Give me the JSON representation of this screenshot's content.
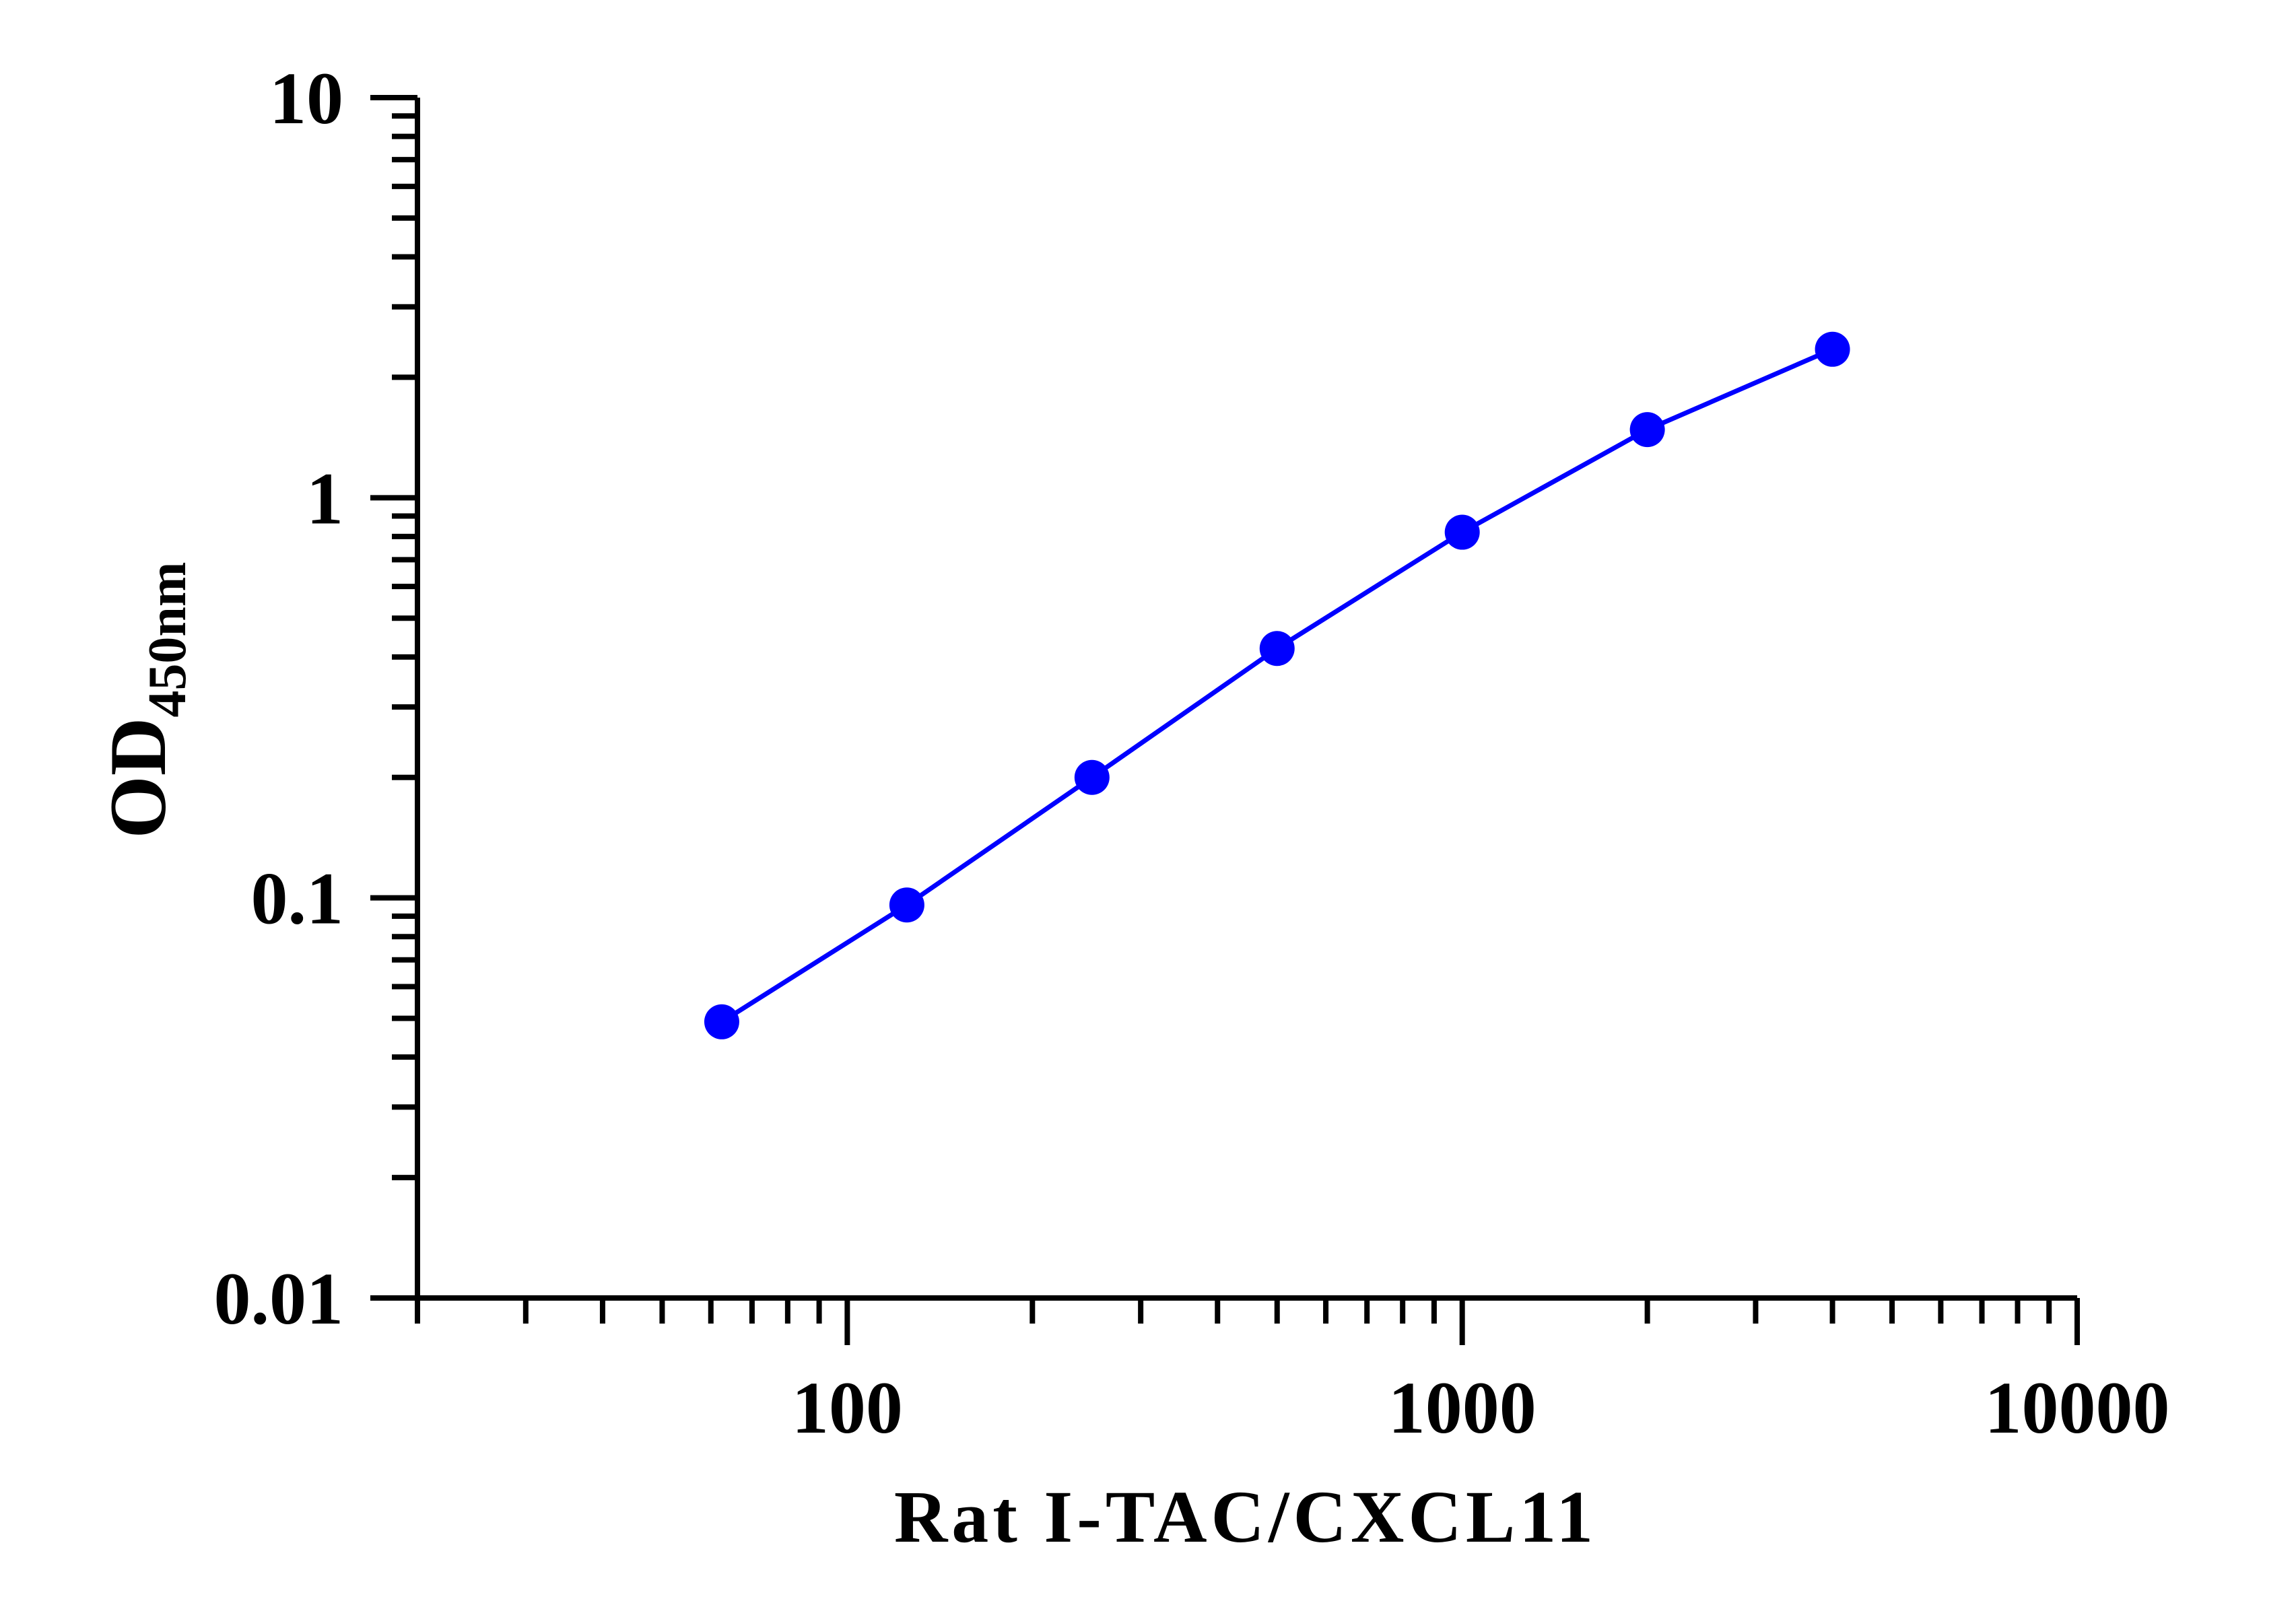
{
  "chart_data": {
    "type": "line",
    "title": "",
    "xlabel": "Rat I-TAC/CXCL11",
    "ylabel": {
      "main": "OD",
      "subscript": "450nm"
    },
    "x_scale": "log",
    "y_scale": "log",
    "xlim": [
      20,
      10000
    ],
    "ylim": [
      0.01,
      10
    ],
    "x_tick_labels": [
      "100",
      "1000",
      "10000"
    ],
    "x_tick_values": [
      100,
      1000,
      10000
    ],
    "y_tick_labels": [
      "10",
      "1",
      "0.1",
      "0.01"
    ],
    "y_tick_values": [
      10,
      1,
      0.1,
      0.01
    ],
    "grid": false,
    "legend": false,
    "series": [
      {
        "color": "#0000ff",
        "x": [
          62.5,
          125,
          250,
          500,
          1000,
          2000,
          4000
        ],
        "y": [
          0.049,
          0.096,
          0.2,
          0.42,
          0.82,
          1.48,
          2.35
        ]
      }
    ]
  }
}
